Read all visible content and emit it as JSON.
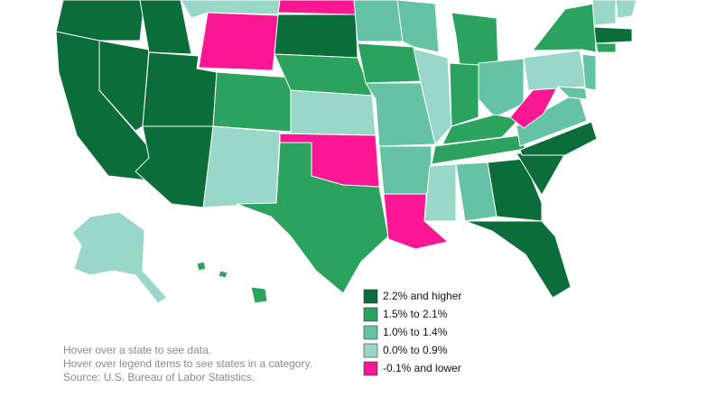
{
  "legend": {
    "items": [
      {
        "label": "2.2% and higher",
        "color": "#0b6e3a"
      },
      {
        "label": "1.5% to 2.1%",
        "color": "#2ca25f"
      },
      {
        "label": "1.0% to 1.4%",
        "color": "#66c2a4"
      },
      {
        "label": "0.0% to 0.9%",
        "color": "#99d8c9"
      },
      {
        "label": "-0.1% and lower",
        "color": "#fa1793"
      }
    ]
  },
  "notes": [
    "Hover over a state to see data.",
    "Hover over legend items to see states in a category.",
    "Source: U.S. Bureau of Labor Statistics."
  ]
}
